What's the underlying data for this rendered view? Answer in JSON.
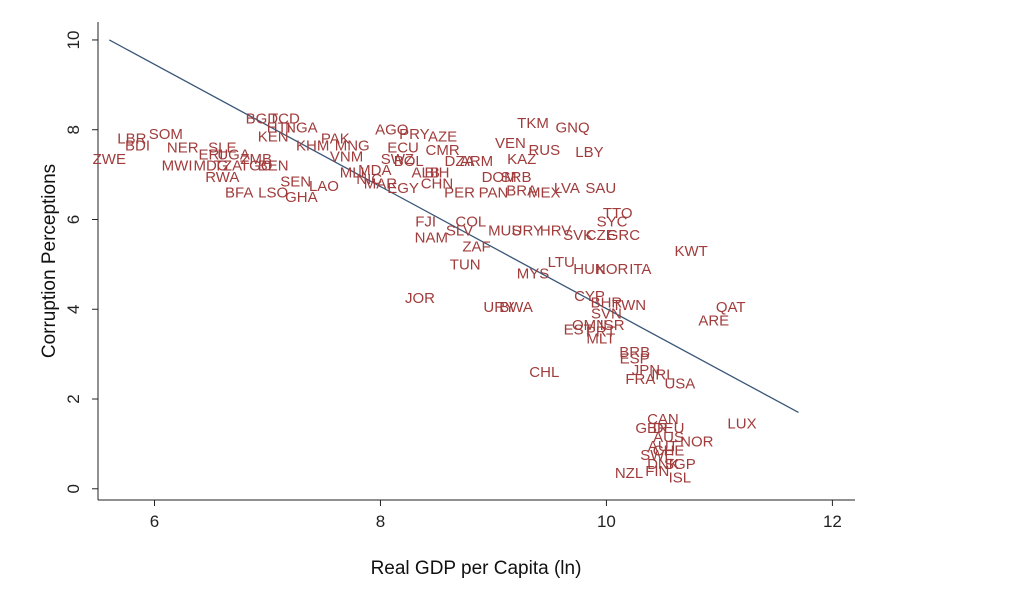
{
  "chart_data": {
    "type": "scatter",
    "title": "",
    "xlabel": "Real GDP per Capita (ln)",
    "ylabel": "Corruption Perceptions",
    "xlim": [
      5.5,
      12.2
    ],
    "ylim": [
      -0.25,
      10.4
    ],
    "x_ticks": [
      6,
      8,
      10,
      12
    ],
    "y_ticks": [
      0,
      2,
      4,
      6,
      8,
      10
    ],
    "grid": false,
    "legend": "none",
    "label_color": "#a03c3c",
    "fit_line_color": "#3a5778",
    "fit_line": {
      "x": [
        5.6,
        11.7
      ],
      "y": [
        10.0,
        1.7
      ]
    },
    "points": [
      {
        "label": "SOM",
        "x": 6.1,
        "y": 7.9
      },
      {
        "label": "LBR",
        "x": 5.8,
        "y": 7.8
      },
      {
        "label": "BDI",
        "x": 5.85,
        "y": 7.65
      },
      {
        "label": "NER",
        "x": 6.25,
        "y": 7.6
      },
      {
        "label": "ZWE",
        "x": 5.6,
        "y": 7.35
      },
      {
        "label": "MWI",
        "x": 6.2,
        "y": 7.2
      },
      {
        "label": "SLE",
        "x": 6.6,
        "y": 7.6
      },
      {
        "label": "ERI",
        "x": 6.5,
        "y": 7.45
      },
      {
        "label": "UGA",
        "x": 6.7,
        "y": 7.45
      },
      {
        "label": "MDG",
        "x": 6.5,
        "y": 7.2
      },
      {
        "label": "TZA",
        "x": 6.65,
        "y": 7.2
      },
      {
        "label": "ZMB",
        "x": 6.9,
        "y": 7.35
      },
      {
        "label": "TGO",
        "x": 6.9,
        "y": 7.2
      },
      {
        "label": "BEN",
        "x": 7.05,
        "y": 7.2
      },
      {
        "label": "RWA",
        "x": 6.6,
        "y": 6.95
      },
      {
        "label": "BFA",
        "x": 6.75,
        "y": 6.6
      },
      {
        "label": "LSO",
        "x": 7.05,
        "y": 6.6
      },
      {
        "label": "SEN",
        "x": 7.25,
        "y": 6.85
      },
      {
        "label": "LAO",
        "x": 7.5,
        "y": 6.75
      },
      {
        "label": "GHA",
        "x": 7.3,
        "y": 6.5
      },
      {
        "label": "BGD",
        "x": 6.95,
        "y": 8.25
      },
      {
        "label": "TCD",
        "x": 7.15,
        "y": 8.25
      },
      {
        "label": "HTI",
        "x": 7.1,
        "y": 8.05
      },
      {
        "label": "NGA",
        "x": 7.3,
        "y": 8.05
      },
      {
        "label": "KEN",
        "x": 7.05,
        "y": 7.85
      },
      {
        "label": "KHM",
        "x": 7.4,
        "y": 7.65
      },
      {
        "label": "PAK",
        "x": 7.6,
        "y": 7.8
      },
      {
        "label": "MNG",
        "x": 7.75,
        "y": 7.65
      },
      {
        "label": "VNM",
        "x": 7.7,
        "y": 7.4
      },
      {
        "label": "MLI",
        "x": 7.75,
        "y": 7.05
      },
      {
        "label": "MDA",
        "x": 7.95,
        "y": 7.1
      },
      {
        "label": "NIC",
        "x": 7.9,
        "y": 6.9
      },
      {
        "label": "MAR",
        "x": 8.0,
        "y": 6.8
      },
      {
        "label": "EGY",
        "x": 8.2,
        "y": 6.7
      },
      {
        "label": "AGO",
        "x": 8.1,
        "y": 8.0
      },
      {
        "label": "PRY",
        "x": 8.3,
        "y": 7.9
      },
      {
        "label": "AZE",
        "x": 8.55,
        "y": 7.85
      },
      {
        "label": "ECU",
        "x": 8.2,
        "y": 7.6
      },
      {
        "label": "CMR",
        "x": 8.55,
        "y": 7.55
      },
      {
        "label": "BOL",
        "x": 8.25,
        "y": 7.3
      },
      {
        "label": "SWZ",
        "x": 8.15,
        "y": 7.35
      },
      {
        "label": "ALB",
        "x": 8.4,
        "y": 7.05
      },
      {
        "label": "BIH",
        "x": 8.5,
        "y": 7.05
      },
      {
        "label": "CHN",
        "x": 8.5,
        "y": 6.8
      },
      {
        "label": "DZA",
        "x": 8.7,
        "y": 7.3
      },
      {
        "label": "ARM",
        "x": 8.85,
        "y": 7.3
      },
      {
        "label": "DOM",
        "x": 9.05,
        "y": 6.95
      },
      {
        "label": "PER",
        "x": 8.7,
        "y": 6.6
      },
      {
        "label": "PAN",
        "x": 9.0,
        "y": 6.6
      },
      {
        "label": "BRA",
        "x": 9.25,
        "y": 6.65
      },
      {
        "label": "MEX",
        "x": 9.45,
        "y": 6.6
      },
      {
        "label": "SRB",
        "x": 9.2,
        "y": 6.95
      },
      {
        "label": "KAZ",
        "x": 9.25,
        "y": 7.35
      },
      {
        "label": "VEN",
        "x": 9.15,
        "y": 7.7
      },
      {
        "label": "RUS",
        "x": 9.45,
        "y": 7.55
      },
      {
        "label": "TKM",
        "x": 9.35,
        "y": 8.15
      },
      {
        "label": "GNQ",
        "x": 9.7,
        "y": 8.05
      },
      {
        "label": "LBY",
        "x": 9.85,
        "y": 7.5
      },
      {
        "label": "LVA",
        "x": 9.65,
        "y": 6.7
      },
      {
        "label": "SAU",
        "x": 9.95,
        "y": 6.7
      },
      {
        "label": "FJI",
        "x": 8.4,
        "y": 5.95
      },
      {
        "label": "COL",
        "x": 8.8,
        "y": 5.95
      },
      {
        "label": "SLV",
        "x": 8.7,
        "y": 5.75
      },
      {
        "label": "NAM",
        "x": 8.45,
        "y": 5.6
      },
      {
        "label": "ZAF",
        "x": 8.85,
        "y": 5.4
      },
      {
        "label": "MUS",
        "x": 9.1,
        "y": 5.75
      },
      {
        "label": "URY",
        "x": 9.3,
        "y": 5.75
      },
      {
        "label": "HRV",
        "x": 9.55,
        "y": 5.75
      },
      {
        "label": "SVK",
        "x": 9.75,
        "y": 5.65
      },
      {
        "label": "CZE",
        "x": 9.95,
        "y": 5.65
      },
      {
        "label": "GRC",
        "x": 10.15,
        "y": 5.65
      },
      {
        "label": "TTO",
        "x": 10.1,
        "y": 6.15
      },
      {
        "label": "SYC",
        "x": 10.05,
        "y": 5.95
      },
      {
        "label": "TUN",
        "x": 8.75,
        "y": 5.0
      },
      {
        "label": "LTU",
        "x": 9.6,
        "y": 5.05
      },
      {
        "label": "MYS",
        "x": 9.35,
        "y": 4.8
      },
      {
        "label": "HUN",
        "x": 9.85,
        "y": 4.9
      },
      {
        "label": "KOR",
        "x": 10.05,
        "y": 4.9
      },
      {
        "label": "ITA",
        "x": 10.3,
        "y": 4.9
      },
      {
        "label": "KWT",
        "x": 10.75,
        "y": 5.3
      },
      {
        "label": "JOR",
        "x": 8.35,
        "y": 4.25
      },
      {
        "label": "URY",
        "x": 9.05,
        "y": 4.05
      },
      {
        "label": "BWA",
        "x": 9.2,
        "y": 4.05
      },
      {
        "label": "CYP",
        "x": 9.85,
        "y": 4.3
      },
      {
        "label": "BHR",
        "x": 10.0,
        "y": 4.15
      },
      {
        "label": "TWN",
        "x": 10.2,
        "y": 4.1
      },
      {
        "label": "SVN",
        "x": 10.0,
        "y": 3.9
      },
      {
        "label": "OMN",
        "x": 9.85,
        "y": 3.65
      },
      {
        "label": "ISR",
        "x": 10.05,
        "y": 3.65
      },
      {
        "label": "EST",
        "x": 9.75,
        "y": 3.55
      },
      {
        "label": "PRT",
        "x": 9.95,
        "y": 3.5
      },
      {
        "label": "MLT",
        "x": 9.95,
        "y": 3.35
      },
      {
        "label": "QAT",
        "x": 11.1,
        "y": 4.05
      },
      {
        "label": "ARE",
        "x": 10.95,
        "y": 3.75
      },
      {
        "label": "CHL",
        "x": 9.45,
        "y": 2.6
      },
      {
        "label": "BRB",
        "x": 10.25,
        "y": 3.05
      },
      {
        "label": "ESP",
        "x": 10.25,
        "y": 2.9
      },
      {
        "label": "JPN",
        "x": 10.35,
        "y": 2.65
      },
      {
        "label": "IRL",
        "x": 10.5,
        "y": 2.55
      },
      {
        "label": "FRA",
        "x": 10.3,
        "y": 2.45
      },
      {
        "label": "USA",
        "x": 10.65,
        "y": 2.35
      },
      {
        "label": "CAN",
        "x": 10.5,
        "y": 1.55
      },
      {
        "label": "GBR",
        "x": 10.4,
        "y": 1.35
      },
      {
        "label": "DEU",
        "x": 10.55,
        "y": 1.35
      },
      {
        "label": "AUS",
        "x": 10.55,
        "y": 1.15
      },
      {
        "label": "NOR",
        "x": 10.8,
        "y": 1.05
      },
      {
        "label": "AUT",
        "x": 10.5,
        "y": 0.95
      },
      {
        "label": "CHE",
        "x": 10.55,
        "y": 0.85
      },
      {
        "label": "SWE",
        "x": 10.45,
        "y": 0.75
      },
      {
        "label": "DNK",
        "x": 10.5,
        "y": 0.55
      },
      {
        "label": "SGP",
        "x": 10.65,
        "y": 0.55
      },
      {
        "label": "NZL",
        "x": 10.2,
        "y": 0.35
      },
      {
        "label": "FIN",
        "x": 10.45,
        "y": 0.4
      },
      {
        "label": "ISL",
        "x": 10.65,
        "y": 0.25
      },
      {
        "label": "LUX",
        "x": 11.2,
        "y": 1.45
      }
    ]
  }
}
